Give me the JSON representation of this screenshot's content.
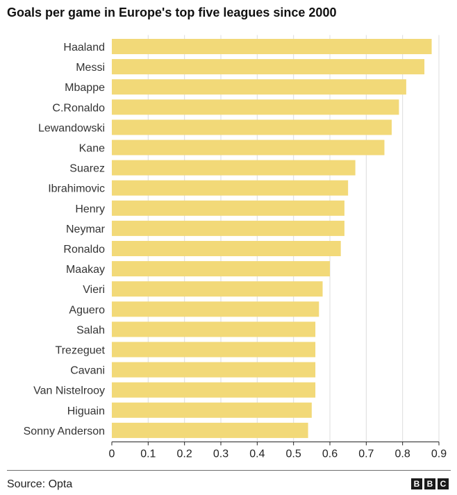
{
  "chart_data": {
    "type": "bar",
    "orientation": "horizontal",
    "title": "Goals per game in Europe's top five leagues since 2000",
    "categories": [
      "Haaland",
      "Messi",
      "Mbappe",
      "C.Ronaldo",
      "Lewandowski",
      "Kane",
      "Suarez",
      "Ibrahimovic",
      "Henry",
      "Neymar",
      "Ronaldo",
      "Maakay",
      "Vieri",
      "Aguero",
      "Salah",
      "Trezeguet",
      "Cavani",
      "Van Nistelrooy",
      "Higuain",
      "Sonny Anderson"
    ],
    "values": [
      0.88,
      0.86,
      0.81,
      0.79,
      0.77,
      0.75,
      0.67,
      0.65,
      0.64,
      0.64,
      0.63,
      0.6,
      0.58,
      0.57,
      0.56,
      0.56,
      0.56,
      0.56,
      0.55,
      0.54
    ],
    "xlim": [
      0,
      0.9
    ],
    "xticks": [
      "0",
      "0.1",
      "0.2",
      "0.3",
      "0.4",
      "0.5",
      "0.6",
      "0.7",
      "0.8",
      "0.9"
    ],
    "xlabel": "",
    "ylabel": "",
    "grid": true,
    "bar_color": "#f2d978",
    "grid_color": "#dcdcdc",
    "axis_color": "#222222"
  },
  "footer": {
    "source": "Source: Opta",
    "logo_letters": [
      "B",
      "B",
      "C"
    ]
  }
}
